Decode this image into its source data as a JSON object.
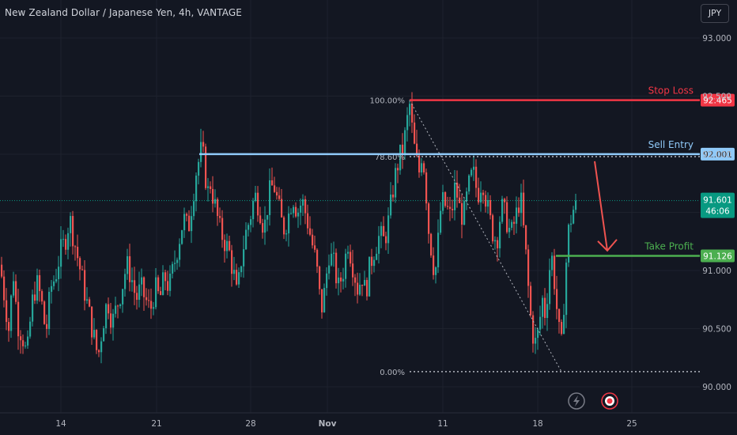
{
  "title": "New Zealand Dollar / Japanese Yen, 4h, VANTAGE",
  "currency_button": "JPY",
  "colors": {
    "background": "#131722",
    "up": "#26a69a",
    "down": "#ef5350",
    "stop_loss": "#f23645",
    "sell_entry": "#90caf9",
    "take_profit": "#4caf50",
    "current_price": "#089981",
    "fib": "#b2b5be",
    "axis_text": "#b2b5be"
  },
  "chart_data": {
    "type": "candlestick",
    "symbol": "NZDJPY",
    "timeframe": "4h",
    "y_ticks": [
      "93.000",
      "92.500",
      "92.000",
      "91.500",
      "91.000",
      "90.500",
      "90.000"
    ],
    "y_tick_values": [
      93.0,
      92.5,
      92.0,
      91.5,
      91.0,
      90.5,
      90.0
    ],
    "x_ticks": [
      "14",
      "21",
      "28",
      "Nov",
      "11",
      "18",
      "25"
    ],
    "ylim": [
      89.94,
      93.23
    ],
    "levels": [
      {
        "name": "Stop Loss",
        "price": 92.465,
        "label": "92.465",
        "color": "#f23645"
      },
      {
        "name": "Sell Entry",
        "price": 92.001,
        "label": "92.001",
        "color": "#90caf9"
      },
      {
        "name": "Take Profit",
        "price": 91.126,
        "label": "91.126",
        "color": "#4caf50"
      }
    ],
    "current_price": {
      "label": "91.601",
      "countdown": "46:06",
      "price": 91.601
    },
    "fib": [
      {
        "label": "100.00%",
        "price": 92.465
      },
      {
        "label": "78.60%",
        "price": 91.98
      },
      {
        "label": "0.00%",
        "price": 90.13
      }
    ],
    "arrow": {
      "from_price": 91.98,
      "to_price": 91.13,
      "direction": "down"
    },
    "path": [
      [
        0,
        91.05
      ],
      [
        6,
        90.75
      ],
      [
        12,
        90.45
      ],
      [
        16,
        91.05
      ],
      [
        22,
        90.55
      ],
      [
        28,
        90.45
      ],
      [
        34,
        90.25
      ],
      [
        40,
        90.7
      ],
      [
        46,
        90.9
      ],
      [
        52,
        90.75
      ],
      [
        58,
        90.45
      ],
      [
        64,
        90.85
      ],
      [
        70,
        90.95
      ],
      [
        76,
        91.15
      ],
      [
        82,
        91.25
      ],
      [
        88,
        91.45
      ],
      [
        94,
        91.25
      ],
      [
        100,
        91.05
      ],
      [
        106,
        90.85
      ],
      [
        112,
        90.65
      ],
      [
        118,
        90.45
      ],
      [
        124,
        90.25
      ],
      [
        130,
        90.55
      ],
      [
        136,
        90.75
      ],
      [
        142,
        90.55
      ],
      [
        148,
        90.7
      ],
      [
        154,
        90.85
      ],
      [
        160,
        91.05
      ],
      [
        166,
        90.95
      ],
      [
        172,
        90.75
      ],
      [
        178,
        90.85
      ],
      [
        184,
        90.75
      ],
      [
        190,
        90.65
      ],
      [
        196,
        90.85
      ],
      [
        202,
        90.75
      ],
      [
        208,
        90.95
      ],
      [
        214,
        90.85
      ],
      [
        220,
        91.05
      ],
      [
        226,
        91.25
      ],
      [
        232,
        91.45
      ],
      [
        238,
        91.35
      ],
      [
        242,
        91.55
      ],
      [
        248,
        91.85
      ],
      [
        254,
        92.02
      ],
      [
        258,
        91.95
      ],
      [
        262,
        91.65
      ],
      [
        266,
        91.75
      ],
      [
        272,
        91.55
      ],
      [
        278,
        91.35
      ],
      [
        284,
        91.25
      ],
      [
        290,
        91.15
      ],
      [
        296,
        90.95
      ],
      [
        300,
        90.75
      ],
      [
        304,
        91.05
      ],
      [
        310,
        91.3
      ],
      [
        316,
        91.45
      ],
      [
        322,
        91.65
      ],
      [
        328,
        91.55
      ],
      [
        334,
        91.35
      ],
      [
        340,
        91.65
      ],
      [
        346,
        91.75
      ],
      [
        352,
        91.55
      ],
      [
        358,
        91.35
      ],
      [
        364,
        91.45
      ],
      [
        370,
        91.65
      ],
      [
        376,
        91.5
      ],
      [
        382,
        91.6
      ],
      [
        388,
        91.45
      ],
      [
        394,
        91.25
      ],
      [
        400,
        91.05
      ],
      [
        406,
        90.65
      ],
      [
        410,
        90.8
      ],
      [
        416,
        91.15
      ],
      [
        422,
        91.05
      ],
      [
        428,
        90.85
      ],
      [
        434,
        91.0
      ],
      [
        440,
        91.25
      ],
      [
        446,
        91.05
      ],
      [
        452,
        90.85
      ],
      [
        458,
        90.95
      ],
      [
        462,
        90.8
      ],
      [
        468,
        91.05
      ],
      [
        474,
        91.2
      ],
      [
        480,
        91.3
      ],
      [
        486,
        91.25
      ],
      [
        492,
        91.45
      ],
      [
        498,
        91.75
      ],
      [
        504,
        91.95
      ],
      [
        510,
        92.05
      ],
      [
        514,
        92.25
      ],
      [
        518,
        92.42
      ],
      [
        522,
        92.15
      ],
      [
        526,
        91.95
      ],
      [
        530,
        91.85
      ],
      [
        534,
        92.05
      ],
      [
        538,
        91.75
      ],
      [
        542,
        91.35
      ],
      [
        546,
        91.15
      ],
      [
        550,
        90.95
      ],
      [
        554,
        91.25
      ],
      [
        558,
        91.6
      ],
      [
        564,
        91.55
      ],
      [
        570,
        91.45
      ],
      [
        576,
        91.75
      ],
      [
        580,
        91.55
      ],
      [
        586,
        91.45
      ],
      [
        592,
        91.7
      ],
      [
        598,
        91.85
      ],
      [
        604,
        91.65
      ],
      [
        610,
        91.8
      ],
      [
        616,
        91.55
      ],
      [
        622,
        91.35
      ],
      [
        628,
        91.25
      ],
      [
        634,
        91.55
      ],
      [
        640,
        91.45
      ],
      [
        646,
        91.3
      ],
      [
        652,
        91.45
      ],
      [
        658,
        91.65
      ],
      [
        662,
        91.35
      ],
      [
        666,
        91.05
      ],
      [
        670,
        90.65
      ],
      [
        674,
        90.45
      ],
      [
        678,
        90.35
      ],
      [
        682,
        90.55
      ],
      [
        686,
        90.75
      ],
      [
        690,
        90.6
      ],
      [
        694,
        91.0
      ],
      [
        698,
        91.1
      ],
      [
        702,
        90.85
      ],
      [
        706,
        90.5
      ],
      [
        710,
        90.35
      ],
      [
        714,
        90.85
      ],
      [
        718,
        91.3
      ],
      [
        722,
        91.45
      ],
      [
        726,
        91.55
      ],
      [
        730,
        91.601
      ]
    ]
  }
}
